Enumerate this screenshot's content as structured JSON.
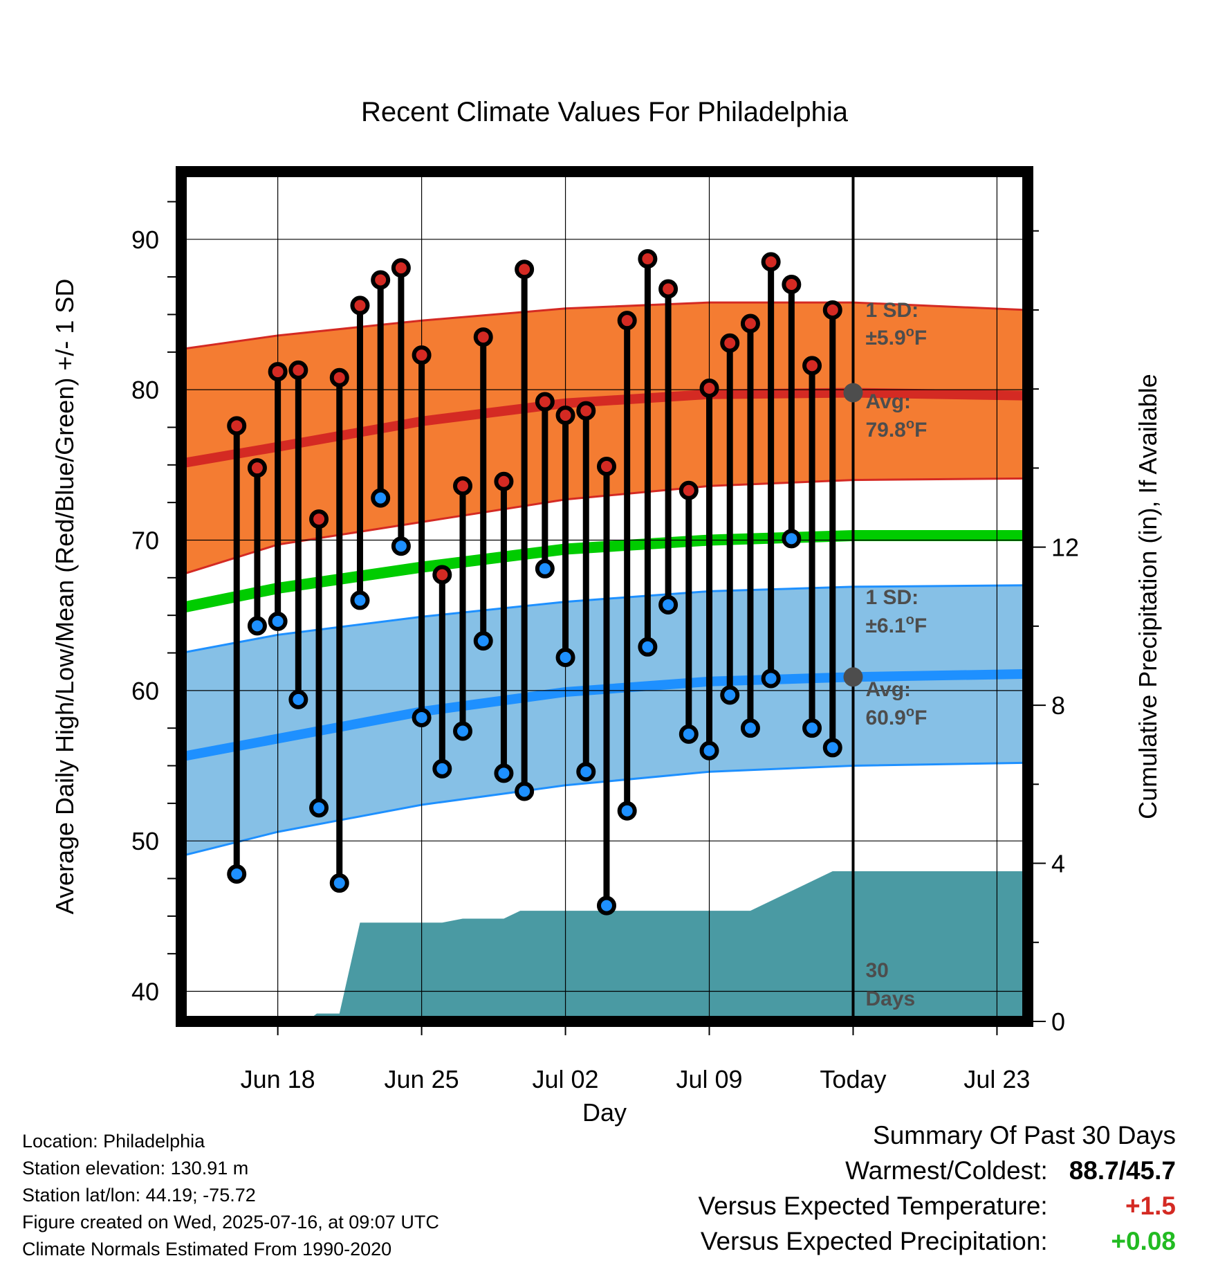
{
  "chart_data": {
    "type": "line",
    "title": "Recent Climate Values For Philadelphia",
    "xlabel": "Day",
    "ylabel": "Average Daily High/Low/Mean (Red/Blue/Green) +/- 1 SD",
    "y2label": "Cumulative Precipitation (in), If Available",
    "ylim": [
      38,
      94.5
    ],
    "y2lim": [
      0,
      21.5
    ],
    "yticks": [
      40,
      50,
      60,
      70,
      80,
      90
    ],
    "y2ticks": [
      0,
      4,
      8,
      12
    ],
    "xlim": [
      -4.7,
      36.5
    ],
    "xtick_positions": [
      0,
      7,
      14,
      21,
      28,
      35
    ],
    "xtick_labels": [
      "Jun 18",
      "Jun 25",
      "Jul 02",
      "Jul 09",
      "Today",
      "Jul 23"
    ],
    "grid": true,
    "today_index": 28,
    "days": [
      -2,
      -1,
      0,
      1,
      2,
      3,
      4,
      5,
      6,
      7,
      8,
      9,
      10,
      11,
      12,
      13,
      14,
      15,
      16,
      17,
      18,
      19,
      20,
      21,
      22,
      23,
      24,
      25,
      26,
      27
    ],
    "observed_high": [
      77.6,
      74.8,
      81.2,
      81.3,
      71.4,
      80.8,
      85.6,
      87.3,
      88.1,
      82.3,
      67.7,
      73.6,
      83.5,
      73.9,
      88.0,
      79.2,
      78.3,
      78.6,
      74.9,
      84.6,
      88.7,
      86.7,
      73.3,
      80.1,
      83.1,
      84.4,
      88.5,
      87.0,
      81.6,
      85.3
    ],
    "observed_low": [
      47.8,
      64.3,
      64.6,
      59.4,
      52.2,
      47.2,
      66.0,
      72.8,
      69.6,
      58.2,
      54.8,
      57.3,
      63.3,
      54.5,
      53.3,
      68.1,
      62.2,
      54.6,
      45.7,
      52.0,
      62.9,
      65.7,
      57.1,
      56.0,
      59.7,
      57.5,
      60.8,
      70.1,
      57.5,
      56.2
    ],
    "normal_high": {
      "x": [
        -4.7,
        0,
        7,
        14,
        21,
        28,
        36.5
      ],
      "avg": [
        75.1,
        76.2,
        77.9,
        79.1,
        79.7,
        79.8,
        79.6
      ],
      "upper": [
        82.7,
        83.6,
        84.6,
        85.4,
        85.8,
        85.8,
        85.3
      ],
      "lower": [
        67.7,
        69.7,
        71.2,
        72.7,
        73.6,
        74.0,
        74.1
      ]
    },
    "normal_low": {
      "x": [
        -4.7,
        0,
        7,
        14,
        21,
        28,
        36.5
      ],
      "avg": [
        55.6,
        56.8,
        58.6,
        59.9,
        60.6,
        60.9,
        61.1
      ],
      "upper": [
        62.5,
        63.7,
        64.9,
        65.9,
        66.6,
        66.9,
        67.0
      ],
      "lower": [
        49.0,
        50.6,
        52.4,
        53.7,
        54.6,
        55.0,
        55.2
      ]
    },
    "normal_mean": {
      "x": [
        -4.7,
        0,
        7,
        14,
        21,
        28,
        36.5
      ],
      "values": [
        65.5,
        66.8,
        68.2,
        69.4,
        70.0,
        70.3,
        70.3
      ]
    },
    "precip_cumulative": {
      "x": [
        -4.7,
        1.4,
        1.9,
        3.0,
        4.0,
        8.0,
        9.0,
        10.0,
        11.0,
        11.8,
        12.4,
        13.0,
        21.0,
        22.0,
        23.0,
        27.0,
        36.5
      ],
      "y": [
        0,
        0,
        0.2,
        0.2,
        2.5,
        2.5,
        2.6,
        2.6,
        2.6,
        2.8,
        2.8,
        2.8,
        2.8,
        2.8,
        2.8,
        3.8,
        3.8
      ]
    },
    "annotations": {
      "high_sd_line1": "1 SD:",
      "high_sd_line2": "±5.9",
      "high_avg_line1": "Avg:",
      "high_avg_line2": "79.8",
      "low_sd_line1": "1 SD:",
      "low_sd_line2": "±6.1",
      "low_avg_line1": "Avg:",
      "low_avg_line2": "60.9",
      "degree": "o",
      "unit": "F",
      "days_line1": "30",
      "days_line2": "Days"
    },
    "colors": {
      "high_band": "#f47c32",
      "high_line": "#d42a23",
      "low_band": "#86c0e6",
      "low_line": "#1e90ff",
      "mean_line": "#00cc00",
      "precip": "#4a9aa3",
      "high_point": "#d42a23",
      "low_point": "#1e90ff",
      "annotation": "#4d4d4d",
      "avg_marker": "#4d4d4d"
    }
  },
  "footer": {
    "location": "Location: Philadelphia",
    "elevation": "Station elevation: 130.91 m",
    "latlon": "Station lat/lon: 44.19; -75.72",
    "created": "Figure created on Wed, 2025-07-16, at 09:07 UTC",
    "normals": "Climate Normals Estimated From 1990-2020"
  },
  "summary": {
    "title": "Summary Of Past 30 Days",
    "warmest_coldest_label": "Warmest/Coldest:",
    "warmest_coldest_value": "88.7/45.7",
    "temp_label": "Versus Expected Temperature:",
    "temp_value": "+1.5",
    "temp_color": "#d42a23",
    "precip_label": "Versus Expected Precipitation:",
    "precip_value": "+0.08",
    "precip_color": "#22bb22"
  }
}
